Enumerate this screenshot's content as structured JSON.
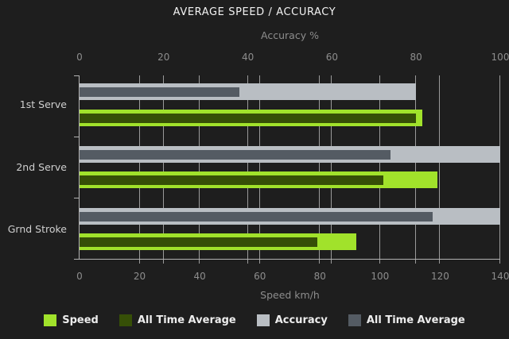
{
  "title": "AVERAGE SPEED / ACCURACY",
  "chart_data": {
    "type": "bar",
    "orientation": "horizontal",
    "title": "AVERAGE SPEED / ACCURACY",
    "categories": [
      "1st Serve",
      "2nd Serve",
      "Grnd Stroke"
    ],
    "axes": {
      "top": {
        "label": "Accuracy %",
        "min": 0,
        "max": 100,
        "ticks": [
          0,
          20,
          40,
          60,
          80,
          100
        ]
      },
      "bottom": {
        "label": "Speed km/h",
        "min": 0,
        "max": 140,
        "ticks": [
          0,
          20,
          40,
          60,
          80,
          100,
          120,
          140
        ]
      }
    },
    "series": [
      {
        "name": "Speed",
        "axis": "bottom",
        "role": "main",
        "color": "#a1e22b",
        "values": [
          114,
          119,
          92
        ]
      },
      {
        "name": "All Time Average",
        "axis": "bottom",
        "role": "overlay",
        "color": "#364f07",
        "values": [
          112,
          101,
          79
        ]
      },
      {
        "name": "Accuracy",
        "axis": "top",
        "role": "main",
        "color": "#b9bec3",
        "values": [
          80,
          100,
          100
        ]
      },
      {
        "name": "All Time Average",
        "axis": "top",
        "role": "overlay",
        "color": "#545b63",
        "values": [
          38,
          74,
          84
        ]
      }
    ],
    "legend": [
      {
        "label": "Speed",
        "color": "#a1e22b"
      },
      {
        "label": "All Time Average",
        "color": "#364f07"
      },
      {
        "label": "Accuracy",
        "color": "#b9bec3"
      },
      {
        "label": "All Time Average",
        "color": "#545b63"
      }
    ],
    "grid": true,
    "colors": {
      "background": "#1e1e1e",
      "gridline": "#9a9a9a",
      "axis": "#b2b2b2",
      "tick_text": "#8d8d8d",
      "category_text": "#cfcfcf",
      "title_text": "#f2f2f2",
      "legend_text": "#ededed"
    }
  }
}
